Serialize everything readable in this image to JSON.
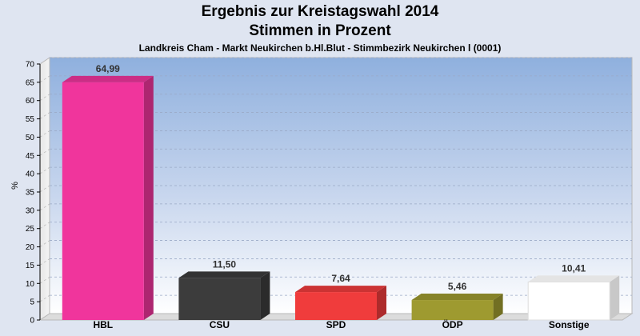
{
  "chart_data": {
    "type": "bar",
    "title": "Ergebnis zur Kreistagswahl 2014",
    "subtitle": "Stimmen in Prozent",
    "caption": "Landkreis Cham - Markt Neukirchen b.Hl.Blut - Stimmbezirk Neukirchen l (0001)",
    "ylabel": "%",
    "xlabel": "",
    "ylim": [
      0,
      70
    ],
    "yticks": [
      0,
      5,
      10,
      15,
      20,
      25,
      30,
      35,
      40,
      45,
      50,
      55,
      60,
      65,
      70
    ],
    "categories": [
      "HBL",
      "CSU",
      "SPD",
      "ÖDP",
      "Sonstige"
    ],
    "values": [
      64.99,
      11.5,
      7.64,
      5.46,
      10.41
    ],
    "value_labels": [
      "64,99",
      "11,50",
      "7,64",
      "5,46",
      "10,41"
    ],
    "colors": [
      "#f0359c",
      "#3c3c3c",
      "#f03c3c",
      "#9e9a30",
      "#ffffff"
    ],
    "grid": true,
    "legend": "none"
  }
}
